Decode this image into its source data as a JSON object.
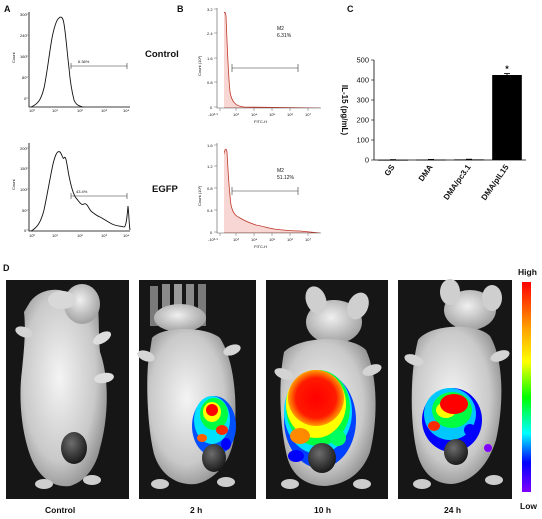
{
  "panels": {
    "a": {
      "letter": "A",
      "rows": [
        {
          "gate_pct": "6.36%"
        },
        {
          "gate_pct": "43.4%"
        }
      ]
    },
    "b": {
      "letter": "B",
      "rows": [
        {
          "row_label": "Control",
          "gate": "M2",
          "gate_pct": "6.31%",
          "xlabel": "FITC-H",
          "ylabel": "Count (10²)",
          "yticks": [
            "0",
            "0.8",
            "1.6",
            "2.4",
            "3.2"
          ]
        },
        {
          "row_label": "EGFP",
          "gate": "M2",
          "gate_pct": "51.12%",
          "xlabel": "FITC-H",
          "ylabel": "Count (10²)",
          "yticks": [
            "0",
            "0.4",
            "0.8",
            "1.2",
            "1.6"
          ]
        }
      ],
      "xticks": [
        "-10³·⁵",
        "10³",
        "10⁴",
        "10⁵",
        "10⁶",
        "10⁷"
      ]
    },
    "c": {
      "letter": "C",
      "significance": "*"
    },
    "d": {
      "letter": "D",
      "colorbar_high": "High",
      "colorbar_low": "Low",
      "mice": [
        {
          "label": "Control"
        },
        {
          "label": "2 h"
        },
        {
          "label": "10 h"
        },
        {
          "label": "24 h"
        }
      ]
    }
  },
  "chart_data": {
    "type": "bar",
    "categories": [
      "GS",
      "DMA",
      "DMA/pc3.1",
      "DMA/pIL15"
    ],
    "values": [
      1,
      2,
      3,
      425
    ],
    "errors": [
      1,
      1,
      1,
      8
    ],
    "ylabel": "IL-15 (pg/mL)",
    "ylim": [
      0,
      500
    ],
    "yticks": [
      0,
      100,
      200,
      300,
      400,
      500
    ],
    "colors": {
      "bar": "#000000"
    }
  },
  "colors": {
    "histogram_fill": "#f7d6d3",
    "histogram_line": "#c0392b",
    "mouse_background": "#161616",
    "colorbar_stops": [
      "#ff0000",
      "#ffff00",
      "#00ff00",
      "#00ffff",
      "#0000ff",
      "#8000ff"
    ]
  }
}
